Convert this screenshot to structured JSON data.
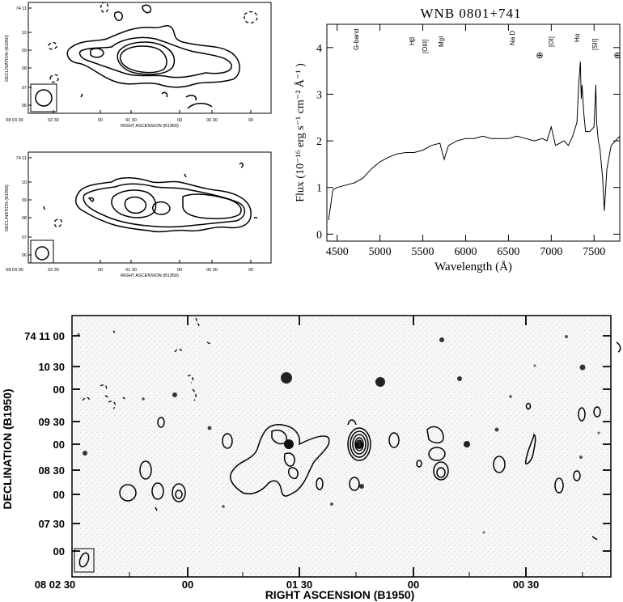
{
  "radio_map_1": {
    "y_axis_label": "DECLINATION (B1950)",
    "x_axis_label": "RIGHT ASCENSION (B1950)",
    "y_ticks": [
      "74 11",
      "10",
      "09",
      "08",
      "07",
      "06"
    ],
    "x_ticks": [
      "08 03 00",
      "02 30",
      "00",
      "01 30",
      "00",
      "00 30",
      "00"
    ]
  },
  "radio_map_2": {
    "y_axis_label": "DECLINATION (B1950)",
    "x_axis_label": "RIGHT ASCENSION (B1950)",
    "y_ticks": [
      "74 11",
      "10",
      "09",
      "08",
      "07",
      "06"
    ],
    "x_ticks": [
      "08 03 00",
      "02 30",
      "00",
      "01 30",
      "00",
      "00 30",
      "00"
    ]
  },
  "chart_data": {
    "type": "line",
    "title": "WNB 0801+741",
    "xlabel": "Wavelength (Å)",
    "ylabel": "Flux (10⁻¹⁶ erg s⁻¹ cm⁻² Å⁻¹ )",
    "xlim": [
      4380,
      7800
    ],
    "ylim": [
      -0.15,
      4.5
    ],
    "x_ticks": [
      4500,
      5000,
      5500,
      6000,
      6500,
      7000,
      7500
    ],
    "y_ticks": [
      0,
      1,
      2,
      3,
      4
    ],
    "line_labels": [
      {
        "text": "G-band",
        "x": 4300
      },
      {
        "text": "Hβ",
        "x": 4861
      },
      {
        "text": "[OIII]",
        "x": 5007
      },
      {
        "text": "MgI",
        "x": 5175
      },
      {
        "text": "Na D",
        "x": 5893
      },
      {
        "text": "⊕",
        "x": 6870
      },
      {
        "text": "[OI]",
        "x": 6300
      },
      {
        "text": "Hα",
        "x": 6563
      },
      {
        "text": "[SII]",
        "x": 6724
      },
      {
        "text": "⊕",
        "x": 7600
      }
    ],
    "series": [
      {
        "x": [
          4400,
          4450,
          4500,
          4600,
          4700,
          4800,
          4900,
          5000,
          5100,
          5200,
          5300,
          5400,
          5500,
          5600,
          5700,
          5750,
          5800,
          5900,
          6000,
          6100,
          6200,
          6300,
          6400,
          6500,
          6600,
          6700,
          6800,
          6900,
          6950,
          7000,
          7050,
          7100,
          7150,
          7200,
          7250,
          7300,
          7320,
          7340,
          7350,
          7360,
          7380,
          7400,
          7450,
          7500,
          7520,
          7530,
          7550,
          7570,
          7600,
          7620,
          7650,
          7700,
          7750,
          7800
        ],
        "y": [
          0.3,
          0.95,
          1.0,
          1.05,
          1.1,
          1.2,
          1.4,
          1.55,
          1.65,
          1.72,
          1.75,
          1.75,
          1.8,
          1.9,
          1.95,
          1.6,
          1.9,
          2.0,
          2.05,
          2.05,
          2.1,
          2.05,
          2.05,
          2.05,
          2.1,
          2.05,
          2.0,
          2.05,
          2.0,
          2.3,
          1.9,
          1.95,
          2.0,
          1.9,
          2.1,
          2.4,
          3.2,
          3.7,
          2.9,
          3.2,
          2.6,
          2.2,
          2.2,
          2.3,
          3.2,
          2.4,
          2.0,
          1.8,
          1.2,
          0.5,
          1.4,
          1.9,
          2.0,
          2.1
        ]
      }
    ]
  },
  "optical_panel": {
    "y_axis_label": "DECLINATION (B1950)",
    "x_axis_label": "RIGHT ASCENSION (B1950)",
    "y_ticks": [
      "74 11 00",
      "10 30",
      "00",
      "09 30",
      "00",
      "08 30",
      "00",
      "07 30",
      "00"
    ],
    "x_ticks": [
      "08 02 30",
      "00",
      "01 30",
      "00",
      "00 30"
    ]
  }
}
